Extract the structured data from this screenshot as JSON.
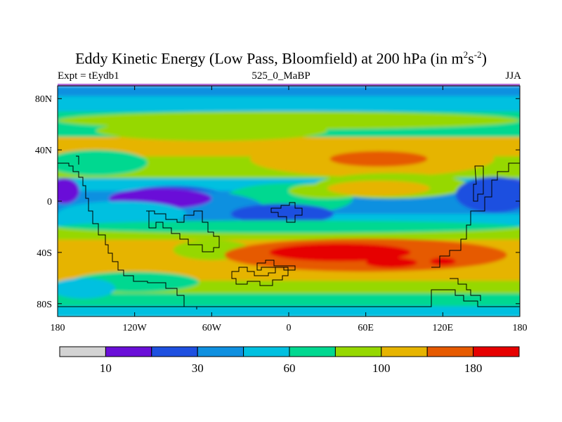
{
  "title": {
    "main": "Eddy Kinetic Energy (Low Pass, Bloomfield) at 200 hPa (in m",
    "sup1": "2",
    "mid": "s",
    "sup2": "-2",
    "end": ")"
  },
  "subtitle": {
    "left": "Expt = tEydb1",
    "center": "525_0_MaBP",
    "right": "JJA"
  },
  "axes": {
    "x_ticks": [
      {
        "lon": -180,
        "label": "180"
      },
      {
        "lon": -120,
        "label": "120W"
      },
      {
        "lon": -60,
        "label": "60W"
      },
      {
        "lon": 0,
        "label": "0"
      },
      {
        "lon": 60,
        "label": "60E"
      },
      {
        "lon": 120,
        "label": "120E"
      },
      {
        "lon": 180,
        "label": "180"
      }
    ],
    "y_ticks": [
      {
        "lat": 80,
        "label": "80N"
      },
      {
        "lat": 40,
        "label": "40N"
      },
      {
        "lat": 0,
        "label": "0"
      },
      {
        "lat": -40,
        "label": "40S"
      },
      {
        "lat": -80,
        "label": "80S"
      }
    ],
    "lon_range": [
      -180,
      180
    ],
    "lat_range": [
      -90,
      90
    ]
  },
  "colorbar": {
    "colors": [
      "#d3d3d3",
      "#6a0fd8",
      "#1e50e0",
      "#0f90e0",
      "#00c0e0",
      "#00d890",
      "#96d800",
      "#e6b400",
      "#e65a00",
      "#e60000"
    ],
    "labels": [
      {
        "after_box": 1,
        "text": "10"
      },
      {
        "after_box": 3,
        "text": "30"
      },
      {
        "after_box": 5,
        "text": "60"
      },
      {
        "after_box": 7,
        "text": "100"
      },
      {
        "after_box": 9,
        "text": "180"
      }
    ]
  },
  "field": {
    "bands": [
      {
        "lat_top": 90,
        "lat_bottom": 82,
        "level": 3
      },
      {
        "lat_top": 82,
        "lat_bottom": 70,
        "level": 4
      },
      {
        "lat_top": 70,
        "lat_bottom": 50,
        "level": 5
      },
      {
        "lat_top": 50,
        "lat_bottom": 35,
        "level": 7
      },
      {
        "lat_top": 35,
        "lat_bottom": 18,
        "level": 6
      },
      {
        "lat_top": 18,
        "lat_bottom": 8,
        "level": 4
      },
      {
        "lat_top": 8,
        "lat_bottom": -10,
        "level": 3
      },
      {
        "lat_top": -10,
        "lat_bottom": -20,
        "level": 4
      },
      {
        "lat_top": -20,
        "lat_bottom": -30,
        "level": 6
      },
      {
        "lat_top": -30,
        "lat_bottom": -62,
        "level": 7
      },
      {
        "lat_top": -62,
        "lat_bottom": -72,
        "level": 6
      },
      {
        "lat_top": -72,
        "lat_bottom": -82,
        "level": 5
      },
      {
        "lat_top": -82,
        "lat_bottom": -90,
        "level": 4
      }
    ],
    "blobs": [
      {
        "lon": 0,
        "lat": 63,
        "rlon": 180,
        "rlat": 7,
        "level": 6
      },
      {
        "lon": -60,
        "lat": 55,
        "rlon": 90,
        "rlat": 8,
        "level": 6
      },
      {
        "lon": 65,
        "lat": 33,
        "rlon": 95,
        "rlat": 14,
        "level": 7
      },
      {
        "lon": 70,
        "lat": 33,
        "rlon": 38,
        "rlat": 6,
        "level": 8
      },
      {
        "lon": -150,
        "lat": 30,
        "rlon": 40,
        "rlat": 10,
        "level": 5
      },
      {
        "lon": 0,
        "lat": 2,
        "rlon": 50,
        "rlat": 12,
        "level": 5
      },
      {
        "lon": 30,
        "lat": 8,
        "rlon": 30,
        "rlat": 6,
        "level": 6
      },
      {
        "lon": 80,
        "lat": 12,
        "rlon": 60,
        "rlat": 10,
        "level": 6
      },
      {
        "lon": 70,
        "lat": 10,
        "rlon": 40,
        "rlat": 6,
        "level": 7
      },
      {
        "lon": -90,
        "lat": 0,
        "rlon": 45,
        "rlat": 12,
        "level": 2
      },
      {
        "lon": -90,
        "lat": -5,
        "rlon": 70,
        "rlat": 14,
        "level": 3
      },
      {
        "lon": -100,
        "lat": 2,
        "rlon": 40,
        "rlat": 8,
        "level": 1
      },
      {
        "lon": -175,
        "lat": 8,
        "rlon": 12,
        "rlat": 10,
        "level": 1
      },
      {
        "lon": 172,
        "lat": 8,
        "rlon": 15,
        "rlat": 10,
        "level": 1
      },
      {
        "lon": 160,
        "lat": 5,
        "rlon": 30,
        "rlat": 14,
        "level": 2
      },
      {
        "lon": -5,
        "lat": -10,
        "rlon": 40,
        "rlat": 8,
        "level": 2
      },
      {
        "lon": -130,
        "lat": -10,
        "rlon": 50,
        "rlat": 10,
        "level": 4
      },
      {
        "lon": -60,
        "lat": -38,
        "rlon": 30,
        "rlat": 8,
        "level": 6
      },
      {
        "lon": 60,
        "lat": -42,
        "rlon": 110,
        "rlat": 13,
        "level": 8
      },
      {
        "lon": 40,
        "lat": -40,
        "rlon": 55,
        "rlat": 7,
        "level": 9
      },
      {
        "lon": 80,
        "lat": -48,
        "rlon": 20,
        "rlat": 4,
        "level": 9
      },
      {
        "lon": 120,
        "lat": -47,
        "rlon": 10,
        "rlat": 3,
        "level": 9
      },
      {
        "lon": -120,
        "lat": -63,
        "rlon": 50,
        "rlat": 8,
        "level": 5
      },
      {
        "lon": -160,
        "lat": -68,
        "rlon": 25,
        "rlat": 8,
        "level": 4
      },
      {
        "lon": 0,
        "lat": -20,
        "rlon": 180,
        "rlat": 5,
        "level": 5
      }
    ]
  }
}
